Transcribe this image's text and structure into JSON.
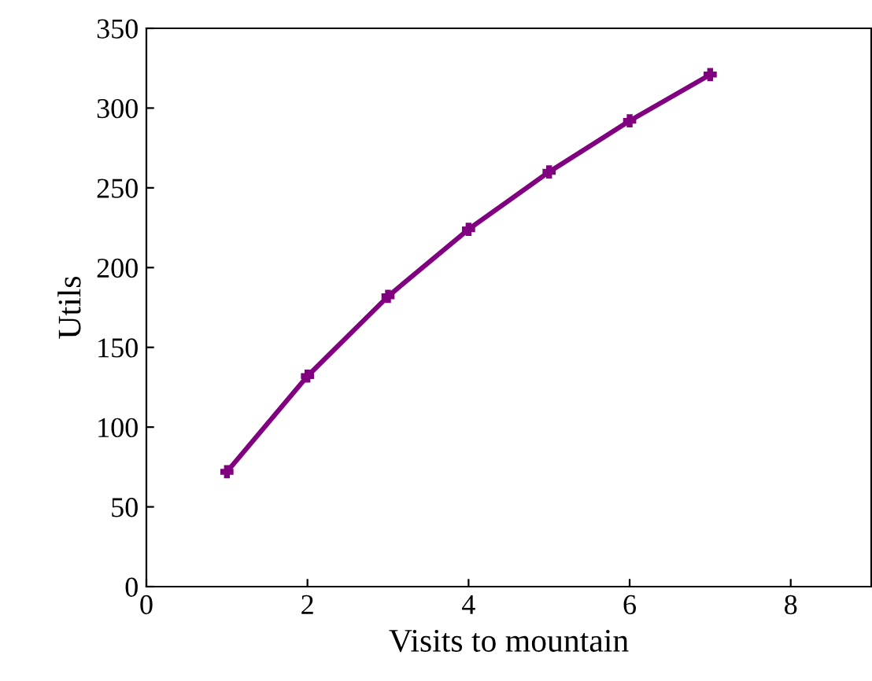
{
  "chart_data": {
    "type": "line",
    "xlabel": "Visits to mountain",
    "ylabel": "Utils",
    "x": [
      1,
      2,
      3,
      4,
      5,
      6,
      7
    ],
    "series": [
      {
        "color": "#800080",
        "values": [
          72,
          132,
          182,
          224,
          260,
          292,
          321
        ]
      }
    ],
    "xlim": [
      0,
      9
    ],
    "xticks": [
      0,
      2,
      4,
      6,
      8
    ],
    "ylim": [
      0,
      350
    ],
    "yticks": [
      0,
      50,
      100,
      150,
      200,
      250,
      300,
      350
    ],
    "marker": "cross",
    "line_style": "solid",
    "grid": false,
    "legend": false
  }
}
